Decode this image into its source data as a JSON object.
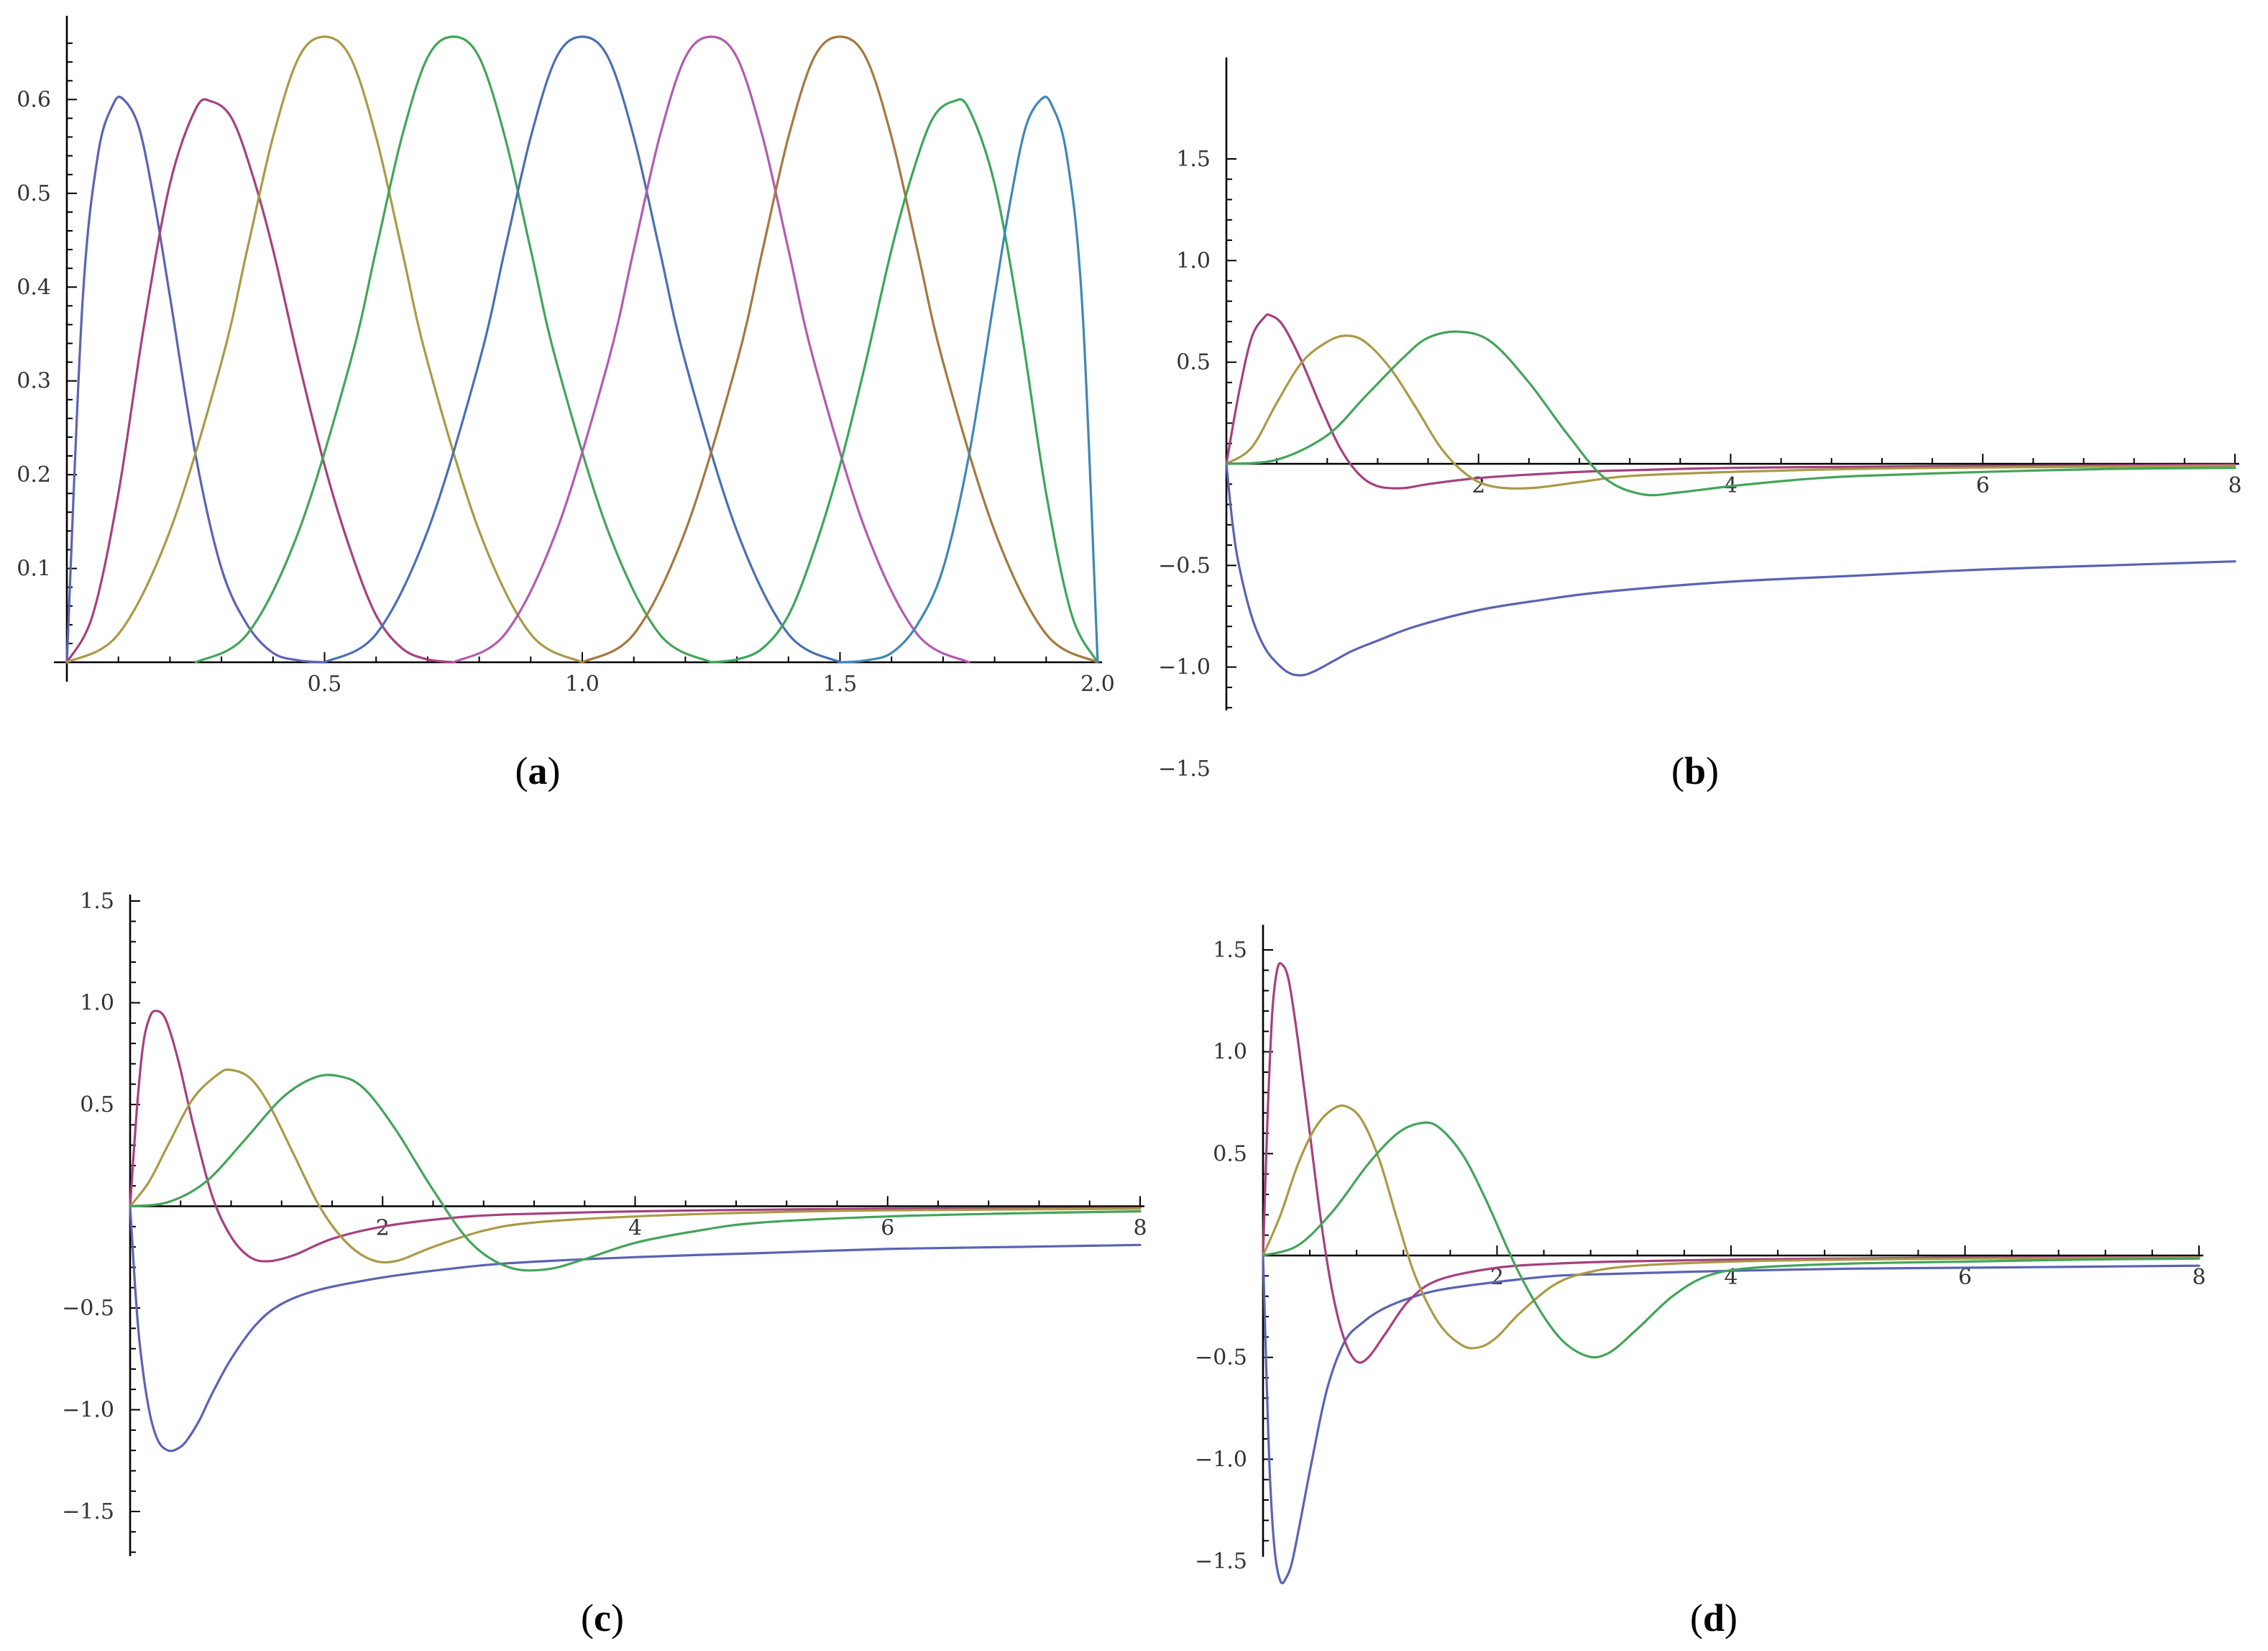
{
  "colors": [
    "#5a63b4",
    "#a6407f",
    "#aa9a45",
    "#43a45a",
    "#4a6fb3",
    "#b45ab0",
    "#a5783e",
    "#3aa65a",
    "#3f87b6"
  ],
  "chart_data": [
    {
      "id": "a",
      "panel_label": "(a)",
      "panel_letter": "a",
      "type": "line",
      "xlim": [
        0,
        2.0
      ],
      "ylim": [
        0,
        0.67
      ],
      "grid": false,
      "xticks": [
        0.5,
        1.0,
        1.5,
        2.0
      ],
      "xtick_labels": [
        "0.5",
        "1.0",
        "1.5",
        "2.0"
      ],
      "yticks": [
        0.1,
        0.2,
        0.3,
        0.4,
        0.5,
        0.6
      ],
      "ytick_labels": [
        "0.1",
        "0.2",
        "0.3",
        "0.4",
        "0.5",
        "0.6"
      ],
      "series": [
        {
          "color": "#5a63b4",
          "x": [
            0,
            0.03,
            0.06,
            0.09,
            0.11,
            0.14,
            0.17,
            0.2,
            0.25,
            0.3,
            0.35,
            0.4,
            0.45,
            0.5
          ],
          "y": [
            0,
            0.38,
            0.54,
            0.595,
            0.6,
            0.57,
            0.49,
            0.39,
            0.22,
            0.1,
            0.04,
            0.01,
            0.002,
            0
          ]
        },
        {
          "color": "#a6407f",
          "x": [
            0,
            0.05,
            0.1,
            0.15,
            0.2,
            0.25,
            0.28,
            0.32,
            0.36,
            0.4,
            0.45,
            0.5,
            0.55,
            0.6,
            0.65,
            0.7,
            0.75
          ],
          "y": [
            0,
            0.05,
            0.18,
            0.36,
            0.51,
            0.59,
            0.598,
            0.58,
            0.52,
            0.44,
            0.32,
            0.21,
            0.12,
            0.05,
            0.015,
            0.003,
            0
          ]
        },
        {
          "color": "#aa9a45",
          "x": [
            0,
            0.1,
            0.2,
            0.3,
            0.35,
            0.4,
            0.45,
            0.5,
            0.55,
            0.6,
            0.65,
            0.7,
            0.8,
            0.9,
            1.0
          ],
          "y": [
            0,
            0.03,
            0.14,
            0.32,
            0.44,
            0.56,
            0.645,
            0.667,
            0.645,
            0.56,
            0.44,
            0.32,
            0.14,
            0.03,
            0
          ]
        },
        {
          "color": "#43a45a",
          "x": [
            0.25,
            0.35,
            0.45,
            0.55,
            0.6,
            0.65,
            0.7,
            0.75,
            0.8,
            0.85,
            0.9,
            0.95,
            1.05,
            1.15,
            1.25
          ],
          "y": [
            0,
            0.03,
            0.14,
            0.32,
            0.44,
            0.56,
            0.645,
            0.667,
            0.645,
            0.56,
            0.44,
            0.32,
            0.14,
            0.03,
            0
          ]
        },
        {
          "color": "#4a6fb3",
          "x": [
            0.5,
            0.6,
            0.7,
            0.8,
            0.85,
            0.9,
            0.95,
            1.0,
            1.05,
            1.1,
            1.15,
            1.2,
            1.3,
            1.4,
            1.5
          ],
          "y": [
            0,
            0.03,
            0.14,
            0.32,
            0.44,
            0.56,
            0.645,
            0.667,
            0.645,
            0.56,
            0.44,
            0.32,
            0.14,
            0.03,
            0
          ]
        },
        {
          "color": "#b45ab0",
          "x": [
            0.75,
            0.85,
            0.95,
            1.05,
            1.1,
            1.15,
            1.2,
            1.25,
            1.3,
            1.35,
            1.4,
            1.45,
            1.55,
            1.65,
            1.75
          ],
          "y": [
            0,
            0.03,
            0.14,
            0.32,
            0.44,
            0.56,
            0.645,
            0.667,
            0.645,
            0.56,
            0.44,
            0.32,
            0.14,
            0.03,
            0
          ]
        },
        {
          "color": "#a5783e",
          "x": [
            1.0,
            1.1,
            1.2,
            1.3,
            1.35,
            1.4,
            1.45,
            1.5,
            1.55,
            1.6,
            1.65,
            1.7,
            1.8,
            1.9,
            2.0
          ],
          "y": [
            0,
            0.03,
            0.14,
            0.32,
            0.44,
            0.56,
            0.645,
            0.667,
            0.645,
            0.56,
            0.44,
            0.32,
            0.14,
            0.03,
            0
          ]
        },
        {
          "color": "#3aa65a",
          "x": [
            1.25,
            1.3,
            1.35,
            1.4,
            1.45,
            1.5,
            1.55,
            1.6,
            1.64,
            1.68,
            1.72,
            1.75,
            1.8,
            1.85,
            1.9,
            1.95,
            2.0
          ],
          "y": [
            0,
            0.003,
            0.015,
            0.05,
            0.12,
            0.21,
            0.32,
            0.44,
            0.52,
            0.58,
            0.598,
            0.59,
            0.51,
            0.36,
            0.18,
            0.05,
            0
          ]
        },
        {
          "color": "#3f87b6",
          "x": [
            1.5,
            1.55,
            1.6,
            1.65,
            1.7,
            1.75,
            1.8,
            1.83,
            1.86,
            1.89,
            1.91,
            1.94,
            1.97,
            2.0
          ],
          "y": [
            0,
            0.002,
            0.01,
            0.04,
            0.1,
            0.22,
            0.39,
            0.49,
            0.57,
            0.6,
            0.595,
            0.54,
            0.38,
            0
          ]
        }
      ]
    },
    {
      "id": "b",
      "panel_label": "(b)",
      "panel_letter": "b",
      "type": "line",
      "xlim": [
        0,
        8
      ],
      "ylim": [
        -1.7,
        1.5
      ],
      "grid": false,
      "xticks": [
        2,
        4,
        6,
        8
      ],
      "xtick_labels": [
        "2",
        "4",
        "6",
        "8"
      ],
      "yticks": [
        -1.5,
        -1.0,
        -0.5,
        0.5,
        1.0,
        1.5
      ],
      "ytick_labels": [
        "-1.5",
        "-1.0",
        "-0.5",
        "0.5",
        "1.0",
        "1.5"
      ],
      "series": [
        {
          "color": "#5a63b4",
          "x": [
            0,
            0.05,
            0.1,
            0.2,
            0.3,
            0.4,
            0.5,
            0.6,
            0.7,
            0.85,
            1.0,
            1.2,
            1.5,
            2.0,
            2.5,
            3.0,
            4.0,
            5.0,
            6.0,
            7.0,
            8.0
          ],
          "y": [
            0,
            -0.3,
            -0.5,
            -0.75,
            -0.9,
            -0.98,
            -1.03,
            -1.04,
            -1.02,
            -0.97,
            -0.92,
            -0.87,
            -0.8,
            -0.72,
            -0.67,
            -0.63,
            -0.58,
            -0.55,
            -0.52,
            -0.5,
            -0.48
          ]
        },
        {
          "color": "#a6407f",
          "x": [
            0,
            0.1,
            0.2,
            0.3,
            0.35,
            0.45,
            0.6,
            0.75,
            0.9,
            1.05,
            1.2,
            1.4,
            1.6,
            2.0,
            2.5,
            3.0,
            4.0,
            5.0,
            6.0,
            8.0
          ],
          "y": [
            0,
            0.35,
            0.62,
            0.72,
            0.73,
            0.68,
            0.5,
            0.28,
            0.08,
            -0.05,
            -0.11,
            -0.12,
            -0.1,
            -0.07,
            -0.05,
            -0.035,
            -0.02,
            -0.015,
            -0.01,
            -0.005
          ]
        },
        {
          "color": "#aa9a45",
          "x": [
            0,
            0.2,
            0.4,
            0.6,
            0.8,
            0.95,
            1.1,
            1.3,
            1.5,
            1.7,
            1.9,
            2.1,
            2.4,
            2.8,
            3.2,
            4.0,
            5.0,
            6.0,
            8.0
          ],
          "y": [
            0,
            0.08,
            0.3,
            0.5,
            0.6,
            0.63,
            0.6,
            0.47,
            0.28,
            0.08,
            -0.05,
            -0.11,
            -0.12,
            -0.09,
            -0.06,
            -0.04,
            -0.025,
            -0.018,
            -0.01
          ]
        },
        {
          "color": "#43a45a",
          "x": [
            0,
            0.4,
            0.8,
            1.1,
            1.4,
            1.6,
            1.85,
            2.1,
            2.4,
            2.7,
            3.0,
            3.3,
            3.6,
            4.0,
            4.5,
            5.0,
            6.0,
            7.0,
            8.0
          ],
          "y": [
            0,
            0.02,
            0.14,
            0.33,
            0.52,
            0.62,
            0.65,
            0.6,
            0.4,
            0.15,
            -0.07,
            -0.15,
            -0.14,
            -0.11,
            -0.08,
            -0.06,
            -0.04,
            -0.025,
            -0.02
          ]
        }
      ]
    },
    {
      "id": "c",
      "panel_label": "(c)",
      "panel_letter": "c",
      "type": "line",
      "xlim": [
        0,
        8
      ],
      "ylim": [
        -1.7,
        1.5
      ],
      "grid": false,
      "xticks": [
        2,
        4,
        6,
        8
      ],
      "xtick_labels": [
        "2",
        "4",
        "6",
        "8"
      ],
      "yticks": [
        -1.5,
        -1.0,
        -0.5,
        0.5,
        1.0,
        1.5
      ],
      "ytick_labels": [
        "-1.5",
        "-1.0",
        "-0.5",
        "0.5",
        "1.0",
        "1.5"
      ],
      "series": [
        {
          "color": "#5a63b4",
          "x": [
            0,
            0.04,
            0.08,
            0.15,
            0.22,
            0.3,
            0.38,
            0.45,
            0.55,
            0.65,
            0.8,
            1.0,
            1.2,
            1.5,
            2.0,
            2.5,
            3.0,
            4.0,
            5.0,
            6.0,
            7.0,
            8.0
          ],
          "y": [
            0,
            -0.4,
            -0.7,
            -1.0,
            -1.15,
            -1.2,
            -1.19,
            -1.15,
            -1.05,
            -0.92,
            -0.75,
            -0.58,
            -0.48,
            -0.41,
            -0.35,
            -0.31,
            -0.28,
            -0.25,
            -0.23,
            -0.21,
            -0.2,
            -0.19
          ]
        },
        {
          "color": "#a6407f",
          "x": [
            0,
            0.05,
            0.1,
            0.15,
            0.2,
            0.28,
            0.38,
            0.5,
            0.65,
            0.8,
            0.95,
            1.1,
            1.3,
            1.6,
            2.0,
            2.5,
            3.0,
            4.0,
            5.0,
            6.0,
            8.0
          ],
          "y": [
            0,
            0.45,
            0.78,
            0.92,
            0.96,
            0.92,
            0.72,
            0.4,
            0.05,
            -0.15,
            -0.25,
            -0.27,
            -0.24,
            -0.16,
            -0.1,
            -0.06,
            -0.04,
            -0.025,
            -0.017,
            -0.012,
            -0.008
          ]
        },
        {
          "color": "#aa9a45",
          "x": [
            0,
            0.15,
            0.3,
            0.5,
            0.7,
            0.8,
            0.95,
            1.1,
            1.3,
            1.5,
            1.7,
            1.9,
            2.1,
            2.4,
            2.8,
            3.2,
            4.0,
            5.0,
            6.0,
            8.0
          ],
          "y": [
            0,
            0.12,
            0.3,
            0.53,
            0.65,
            0.67,
            0.63,
            0.5,
            0.25,
            0.0,
            -0.17,
            -0.26,
            -0.27,
            -0.2,
            -0.12,
            -0.08,
            -0.05,
            -0.03,
            -0.02,
            -0.012
          ]
        },
        {
          "color": "#43a45a",
          "x": [
            0,
            0.3,
            0.6,
            0.9,
            1.2,
            1.45,
            1.65,
            1.85,
            2.1,
            2.4,
            2.7,
            3.0,
            3.3,
            3.6,
            4.0,
            4.5,
            5.0,
            6.0,
            7.0,
            8.0
          ],
          "y": [
            0,
            0.02,
            0.12,
            0.32,
            0.53,
            0.63,
            0.64,
            0.58,
            0.38,
            0.08,
            -0.18,
            -0.3,
            -0.31,
            -0.26,
            -0.18,
            -0.12,
            -0.08,
            -0.05,
            -0.035,
            -0.025
          ]
        }
      ]
    },
    {
      "id": "d",
      "panel_label": "(d)",
      "panel_letter": "d",
      "type": "line",
      "xlim": [
        0,
        8
      ],
      "ylim": [
        -1.7,
        1.5
      ],
      "grid": false,
      "xticks": [
        2,
        4,
        6,
        8
      ],
      "xtick_labels": [
        "2",
        "4",
        "6",
        "8"
      ],
      "yticks": [
        -1.5,
        -1.0,
        -0.5,
        0.5,
        1.0,
        1.5
      ],
      "ytick_labels": [
        "-1.5",
        "-1.0",
        "-0.5",
        "0.5",
        "1.0",
        "1.5"
      ],
      "series": [
        {
          "color": "#5a63b4",
          "x": [
            0,
            0.03,
            0.06,
            0.1,
            0.15,
            0.2,
            0.25,
            0.32,
            0.42,
            0.55,
            0.7,
            0.85,
            1.0,
            1.2,
            1.5,
            2.0,
            2.5,
            3.0,
            4.0,
            5.0,
            6.0,
            7.0,
            8.0
          ],
          "y": [
            0,
            -0.6,
            -1.1,
            -1.45,
            -1.6,
            -1.58,
            -1.5,
            -1.3,
            -1.0,
            -0.65,
            -0.42,
            -0.33,
            -0.27,
            -0.22,
            -0.17,
            -0.13,
            -0.1,
            -0.09,
            -0.075,
            -0.065,
            -0.06,
            -0.055,
            -0.05
          ]
        },
        {
          "color": "#a6407f",
          "x": [
            0,
            0.04,
            0.08,
            0.12,
            0.16,
            0.22,
            0.3,
            0.4,
            0.5,
            0.6,
            0.7,
            0.8,
            0.9,
            1.05,
            1.25,
            1.5,
            2.0,
            2.5,
            3.0,
            4.0,
            5.0,
            6.0,
            8.0
          ],
          "y": [
            0,
            0.7,
            1.2,
            1.4,
            1.43,
            1.35,
            1.05,
            0.6,
            0.15,
            -0.2,
            -0.42,
            -0.52,
            -0.5,
            -0.38,
            -0.22,
            -0.12,
            -0.06,
            -0.04,
            -0.03,
            -0.02,
            -0.015,
            -0.01,
            -0.008
          ]
        },
        {
          "color": "#aa9a45",
          "x": [
            0,
            0.15,
            0.3,
            0.45,
            0.6,
            0.72,
            0.85,
            1.0,
            1.15,
            1.3,
            1.5,
            1.7,
            1.85,
            2.0,
            2.2,
            2.5,
            2.8,
            3.2,
            4.0,
            5.0,
            6.0,
            8.0
          ],
          "y": [
            0,
            0.2,
            0.45,
            0.63,
            0.72,
            0.73,
            0.66,
            0.46,
            0.17,
            -0.1,
            -0.33,
            -0.44,
            -0.45,
            -0.4,
            -0.28,
            -0.14,
            -0.08,
            -0.05,
            -0.03,
            -0.02,
            -0.015,
            -0.01
          ]
        },
        {
          "color": "#43a45a",
          "x": [
            0,
            0.3,
            0.6,
            0.9,
            1.15,
            1.35,
            1.5,
            1.7,
            1.9,
            2.2,
            2.5,
            2.75,
            2.95,
            3.2,
            3.5,
            3.8,
            4.2,
            5.0,
            6.0,
            7.0,
            8.0
          ],
          "y": [
            0,
            0.05,
            0.22,
            0.45,
            0.6,
            0.65,
            0.63,
            0.5,
            0.28,
            -0.1,
            -0.38,
            -0.49,
            -0.48,
            -0.36,
            -0.2,
            -0.1,
            -0.06,
            -0.04,
            -0.03,
            -0.02,
            -0.015
          ]
        }
      ]
    }
  ]
}
